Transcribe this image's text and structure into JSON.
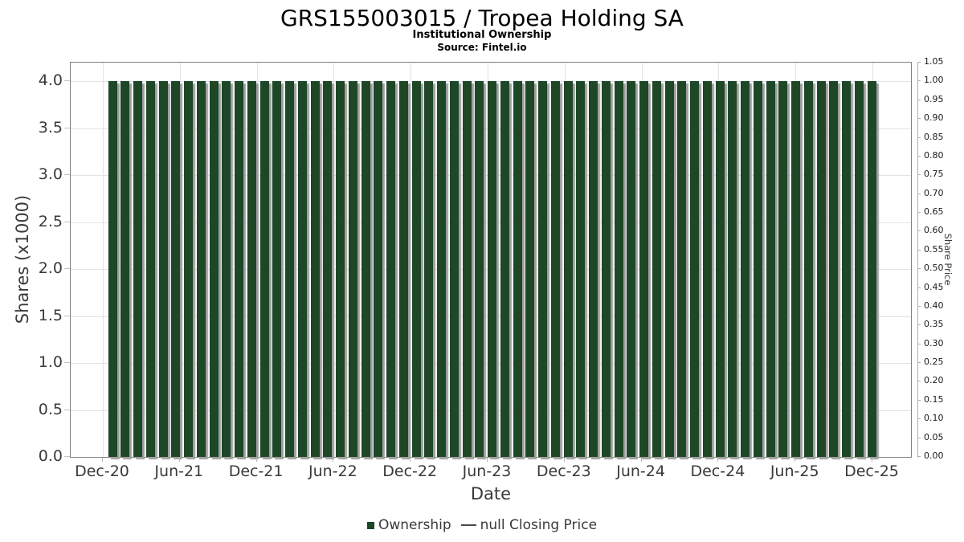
{
  "header": {
    "title": "GRS155003015 / Tropea Holding SA",
    "subtitle": "Institutional Ownership",
    "source": "Source: Fintel.io"
  },
  "chart_data": {
    "type": "bar",
    "title": "GRS155003015 / Tropea Holding SA",
    "subtitle": "Institutional Ownership",
    "source": "Source: Fintel.io",
    "xlabel": "Date",
    "ylabel_left": "Shares (x1000)",
    "ylabel_right": "Share Price",
    "ylim_left": [
      0,
      4.2
    ],
    "ylim_right": [
      0,
      1.05
    ],
    "left_tick_step": 0.5,
    "right_tick_step": 0.05,
    "left_tick_labels": [
      "0.0",
      "0.5",
      "1.0",
      "1.5",
      "2.0",
      "2.5",
      "3.0",
      "3.5",
      "4.0"
    ],
    "right_tick_labels": [
      "0.00",
      "0.05",
      "0.10",
      "0.15",
      "0.20",
      "0.25",
      "0.30",
      "0.35",
      "0.40",
      "0.45",
      "0.50",
      "0.55",
      "0.60",
      "0.65",
      "0.70",
      "0.75",
      "0.80",
      "0.85",
      "0.90",
      "0.95",
      "1.00",
      "1.05"
    ],
    "x_tick_labels": [
      "Dec-20",
      "Jun-21",
      "Dec-21",
      "Jun-22",
      "Dec-22",
      "Jun-23",
      "Dec-23",
      "Jun-24",
      "Dec-24",
      "Jun-25",
      "Dec-25"
    ],
    "grid": true,
    "categories": [
      "Dec-20",
      "Jan-21",
      "Feb-21",
      "Mar-21",
      "Apr-21",
      "May-21",
      "Jun-21",
      "Jul-21",
      "Aug-21",
      "Sep-21",
      "Oct-21",
      "Nov-21",
      "Dec-21",
      "Jan-22",
      "Feb-22",
      "Mar-22",
      "Apr-22",
      "May-22",
      "Jun-22",
      "Jul-22",
      "Aug-22",
      "Sep-22",
      "Oct-22",
      "Nov-22",
      "Dec-22",
      "Jan-23",
      "Feb-23",
      "Mar-23",
      "Apr-23",
      "May-23",
      "Jun-23",
      "Jul-23",
      "Aug-23",
      "Sep-23",
      "Oct-23",
      "Nov-23",
      "Dec-23",
      "Jan-24",
      "Feb-24",
      "Mar-24",
      "Apr-24",
      "May-24",
      "Jun-24",
      "Jul-24",
      "Aug-24",
      "Sep-24",
      "Oct-24",
      "Nov-24",
      "Dec-24",
      "Jan-25",
      "Feb-25",
      "Mar-25",
      "Apr-25",
      "May-25",
      "Jun-25",
      "Jul-25",
      "Aug-25",
      "Sep-25",
      "Oct-25",
      "Nov-25",
      "Dec-25"
    ],
    "series": [
      {
        "name": "Ownership",
        "type": "bar",
        "color": "#1d4727",
        "values": [
          4,
          4,
          4,
          4,
          4,
          4,
          4,
          4,
          4,
          4,
          4,
          4,
          4,
          4,
          4,
          4,
          4,
          4,
          4,
          4,
          4,
          4,
          4,
          4,
          4,
          4,
          4,
          4,
          4,
          4,
          4,
          4,
          4,
          4,
          4,
          4,
          4,
          4,
          4,
          4,
          4,
          4,
          4,
          4,
          4,
          4,
          4,
          4,
          4,
          4,
          4,
          4,
          4,
          4,
          4,
          4,
          4,
          4,
          4,
          4,
          4
        ]
      },
      {
        "name": "null Closing Price",
        "type": "line",
        "color": "#4a4a4a",
        "values": []
      }
    ],
    "legend": {
      "position": "bottom",
      "items": [
        {
          "marker": "square",
          "color": "#1d4727",
          "label": "Ownership"
        },
        {
          "marker": "line",
          "color": "#4a4a4a",
          "label": "null Closing Price"
        }
      ]
    }
  }
}
